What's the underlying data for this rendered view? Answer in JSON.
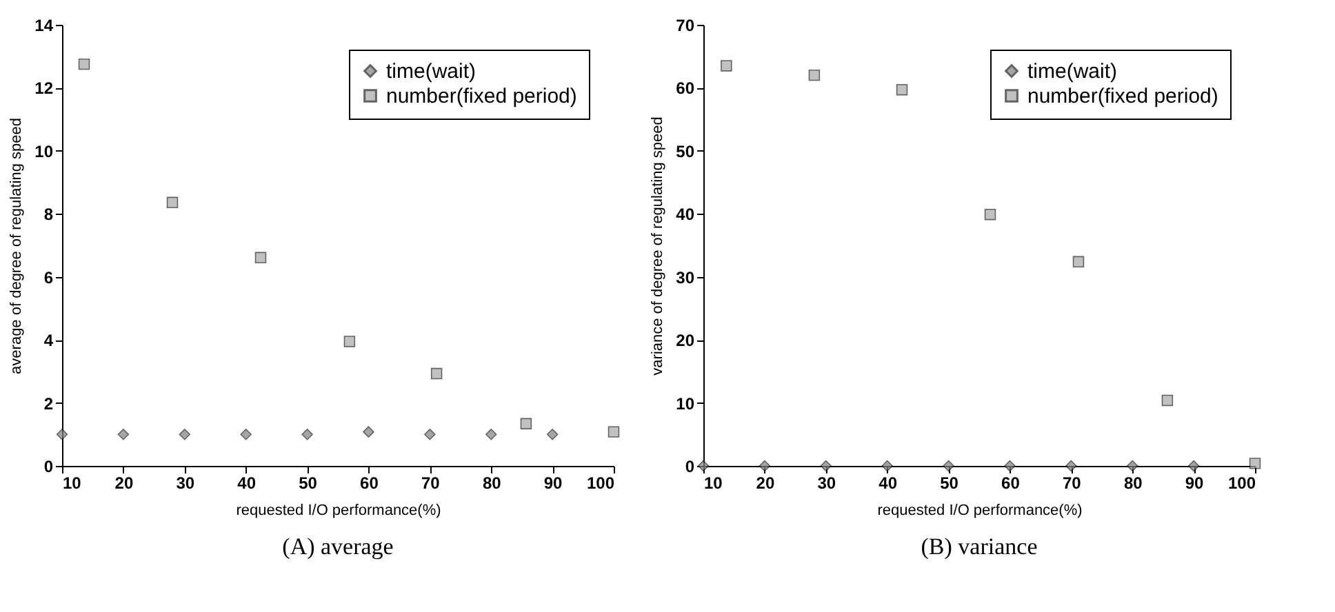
{
  "chart_data": [
    {
      "type": "scatter",
      "title": "(A) average",
      "xlabel": "requested I/O performance(%)",
      "ylabel": "average of degree of regulating speed",
      "xlim": [
        10,
        100
      ],
      "xticks": [
        10,
        20,
        30,
        40,
        50,
        60,
        70,
        80,
        90,
        100
      ],
      "ylim": [
        0,
        14
      ],
      "yticks": [
        0,
        2,
        4,
        6,
        8,
        10,
        12,
        14
      ],
      "grid": false,
      "legend": "top right",
      "series": [
        {
          "name": "time(wait)",
          "color": "#808080",
          "marker": "diamond",
          "x": [
            10,
            20,
            30,
            40,
            50,
            60,
            70,
            80,
            90
          ],
          "values": [
            1.0,
            1.0,
            1.0,
            1.0,
            1.0,
            1.08,
            1.0,
            1.0,
            1.0
          ]
        },
        {
          "name": "number(fixed period)",
          "color": "#a8a8a8",
          "marker": "square",
          "x": [
            13.6,
            28,
            42.4,
            56.9,
            71.1,
            85.7,
            100
          ],
          "values": [
            12.75,
            8.36,
            6.61,
            3.95,
            2.93,
            1.34,
            1.08
          ]
        }
      ]
    },
    {
      "type": "scatter",
      "title": "(B) variance",
      "xlabel": "requested I/O performance(%)",
      "ylabel": "variance of degree of regulating speed",
      "xlim": [
        10,
        100
      ],
      "xticks": [
        10,
        20,
        30,
        40,
        50,
        60,
        70,
        80,
        90,
        100
      ],
      "ylim": [
        0,
        70
      ],
      "yticks": [
        0,
        10,
        20,
        30,
        40,
        50,
        60,
        70
      ],
      "grid": false,
      "legend": "top right",
      "series": [
        {
          "name": "time(wait)",
          "color": "#808080",
          "marker": "diamond",
          "x": [
            10,
            20,
            30,
            40,
            50,
            60,
            70,
            80,
            90
          ],
          "values": [
            0,
            0,
            0,
            0,
            0,
            0,
            0,
            0,
            0
          ]
        },
        {
          "name": "number(fixed period)",
          "color": "#a8a8a8",
          "marker": "square",
          "x": [
            13.75,
            28.1,
            42.4,
            56.8,
            71.2,
            85.7,
            100
          ],
          "values": [
            63.5,
            62.0,
            59.7,
            39.9,
            32.4,
            10.4,
            0.4
          ]
        }
      ]
    }
  ]
}
